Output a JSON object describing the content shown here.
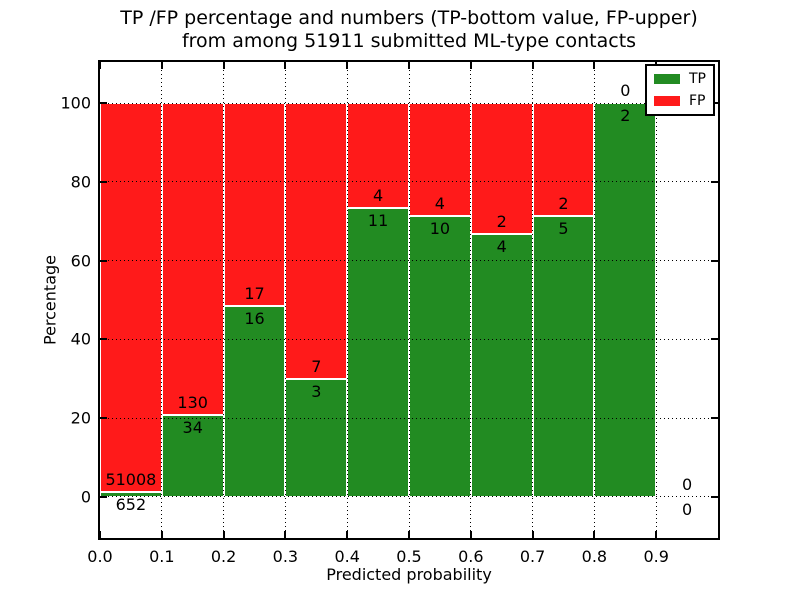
{
  "chart_data": {
    "type": "bar",
    "stacked": true,
    "title_lines": [
      "TP /FP percentage and numbers (TP-bottom value, FP-upper)",
      "from among 51911 submitted ML-type contacts"
    ],
    "xlabel": "Predicted probability",
    "ylabel": "Percentage",
    "xlim": [
      0.0,
      1.0
    ],
    "ylim": [
      -10.5,
      110.5
    ],
    "bin_width": 0.1,
    "grid": "dotted",
    "xticks": {
      "values": [
        0.0,
        0.1,
        0.2,
        0.3,
        0.4,
        0.5,
        0.6,
        0.7,
        0.8,
        0.9
      ],
      "labels": [
        "0.0",
        "0.1",
        "0.2",
        "0.3",
        "0.4",
        "0.5",
        "0.6",
        "0.7",
        "0.8",
        "0.9"
      ]
    },
    "yticks": {
      "values": [
        0,
        20,
        40,
        60,
        80,
        100
      ],
      "labels": [
        "0",
        "20",
        "40",
        "60",
        "80",
        "100"
      ]
    },
    "categories": [
      "0.0-0.1",
      "0.1-0.2",
      "0.2-0.3",
      "0.3-0.4",
      "0.4-0.5",
      "0.5-0.6",
      "0.6-0.7",
      "0.7-0.8",
      "0.8-0.9",
      "0.9-1.0"
    ],
    "series": [
      {
        "name": "TP",
        "position": "bottom",
        "color": "#228b22",
        "counts": [
          652,
          34,
          16,
          3,
          11,
          10,
          4,
          5,
          2,
          0
        ]
      },
      {
        "name": "FP",
        "position": "top",
        "color": "#ff1a1a",
        "counts": [
          51008,
          130,
          17,
          7,
          4,
          4,
          2,
          2,
          0,
          0
        ]
      }
    ],
    "bar_heights_note": "each bin stacks to 100%; segment height = count / (TP+FP) * 100",
    "legend": {
      "position": "upper-right",
      "entries": [
        {
          "label": "TP",
          "color": "#228b22"
        },
        {
          "label": "FP",
          "color": "#ff1a1a"
        }
      ]
    },
    "colors": {
      "background": "#ffffff",
      "axes": "#000000",
      "bar_edge": "#ffffff"
    }
  }
}
